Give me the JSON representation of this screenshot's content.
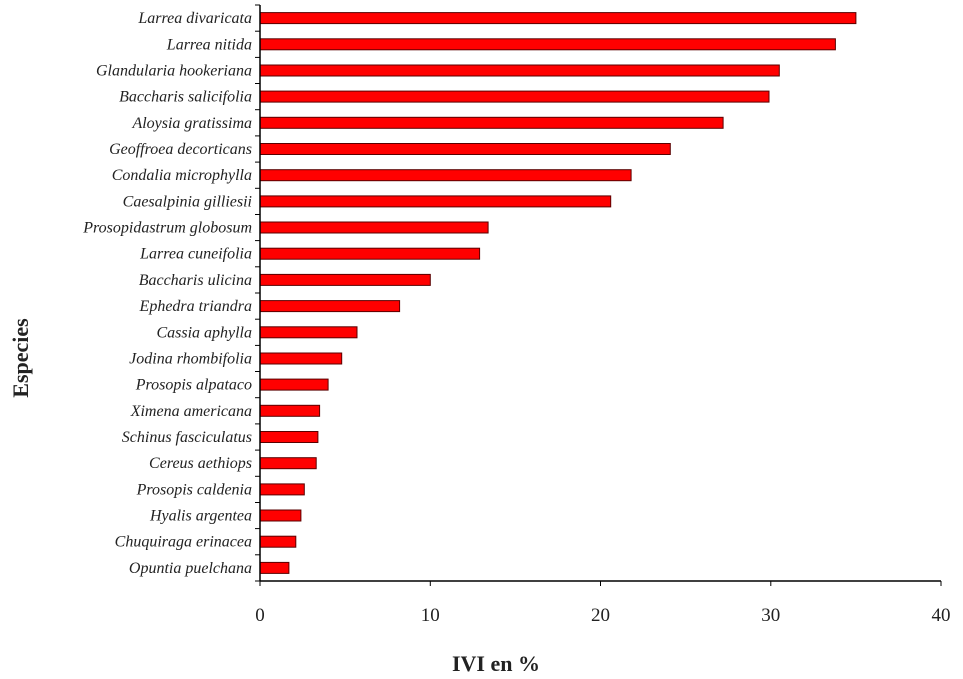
{
  "chart_data": {
    "type": "bar",
    "orientation": "horizontal",
    "title": "",
    "xlabel": "IVI en %",
    "ylabel": "Especies",
    "xlim": [
      0,
      40
    ],
    "xticks": [
      0,
      10,
      20,
      30,
      40
    ],
    "grid": false,
    "legend": "none",
    "bar_color": "#ff0000",
    "categories": [
      "Larrea divaricata",
      "Larrea nitida",
      "Glandularia hookeriana",
      "Baccharis salicifolia",
      "Aloysia gratissima",
      "Geoffroea decorticans",
      "Condalia microphylla",
      "Caesalpinia gilliesii",
      "Prosopidastrum globosum",
      "Larrea cuneifolia",
      "Baccharis ulicina",
      "Ephedra triandra",
      "Cassia aphylla",
      "Jodina rhombifolia",
      "Prosopis alpataco",
      "Ximena americana",
      "Schinus fasciculatus",
      "Cereus aethiops",
      "Prosopis caldenia",
      "Hyalis argentea",
      "Chuquiraga erinacea",
      "Opuntia puelchana"
    ],
    "values": [
      35.0,
      33.8,
      30.5,
      29.9,
      27.2,
      24.1,
      21.8,
      20.6,
      13.4,
      12.9,
      10.0,
      8.2,
      5.7,
      4.8,
      4.0,
      3.5,
      3.4,
      3.3,
      2.6,
      2.4,
      2.1,
      1.7
    ]
  }
}
